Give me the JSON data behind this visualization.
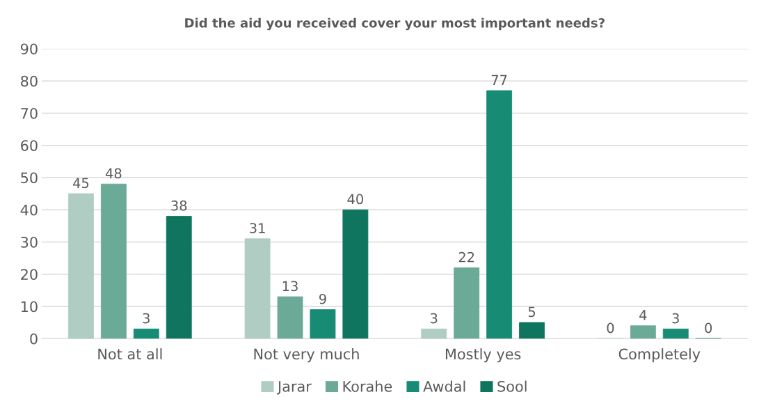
{
  "chart_data": {
    "type": "bar",
    "title": "Did the aid you received cover your most important needs?",
    "categories": [
      "Not at all",
      "Not very much",
      "Mostly yes",
      "Completely"
    ],
    "series": [
      {
        "name": "Jarar",
        "color": "#b0cdc3",
        "values": [
          45,
          31,
          3,
          0
        ]
      },
      {
        "name": "Korahe",
        "color": "#6aaa97",
        "values": [
          48,
          13,
          22,
          4
        ]
      },
      {
        "name": "Awdal",
        "color": "#178b74",
        "values": [
          3,
          9,
          77,
          3
        ]
      },
      {
        "name": "Sool",
        "color": "#0f755f",
        "values": [
          38,
          40,
          5,
          0
        ]
      }
    ],
    "ylim": [
      0,
      90
    ],
    "yticks": [
      0,
      10,
      20,
      30,
      40,
      50,
      60,
      70,
      80,
      90
    ],
    "grid": "y",
    "legend": "bottom",
    "data_labels": true
  }
}
